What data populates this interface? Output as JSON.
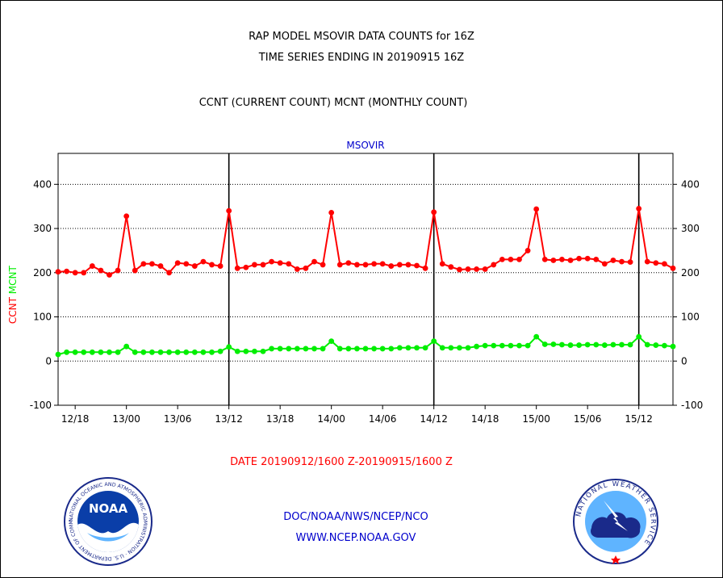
{
  "header": {
    "title_line1": "RAP MODEL MSOVIR DATA COUNTS for 16Z",
    "title_line2": "TIME SERIES ENDING IN 20190915 16Z",
    "subtitle": "CCNT (CURRENT COUNT) MCNT (MONTHLY COUNT)"
  },
  "footer": {
    "date_range": "DATE 20190912/1600 Z-20190915/1600 Z",
    "org": "DOC/NOAA/NWS/NCEP/NCO",
    "url": "WWW.NCEP.NOAA.GOV"
  },
  "logos": {
    "noaa_text": "NOAA",
    "noaa_ring": "NATIONAL OCEANIC AND ATMOSPHERIC ADMINISTRATION · U.S. DEPARTMENT OF COMMERCE",
    "nws_ring": "NATIONAL WEATHER SERVICE"
  },
  "colors": {
    "ccnt": "#ff0000",
    "mcnt": "#00ee00",
    "plot_label": "#0000cc",
    "footer_link": "#0000cc",
    "date_text": "#ff0000"
  },
  "chart_data": {
    "type": "line",
    "title": "MSOVIR",
    "ylabel_parts": [
      {
        "text": "CCNT",
        "color": "#ff0000"
      },
      {
        "text": "MCNT",
        "color": "#00ee00"
      }
    ],
    "xlabel": "DATE 20190912/1600 Z-20190915/1600 Z",
    "ylim": [
      -100,
      470
    ],
    "yticks": [
      -100,
      0,
      100,
      200,
      300,
      400
    ],
    "ytick_labels": [
      "-100",
      "0",
      "100",
      "200",
      "300",
      "400"
    ],
    "grid_y": [
      0,
      100,
      200,
      300,
      400
    ],
    "x_range": [
      0,
      72
    ],
    "xticks": [
      2,
      8,
      14,
      20,
      26,
      32,
      38,
      44,
      50,
      56,
      62,
      68
    ],
    "xtick_labels": [
      "12/18",
      "13/00",
      "13/06",
      "13/12",
      "13/18",
      "14/00",
      "14/06",
      "14/12",
      "14/18",
      "15/00",
      "15/06",
      "15/12"
    ],
    "day_lines_x": [
      20,
      44,
      68
    ],
    "series": [
      {
        "name": "CCNT",
        "color": "#ff0000",
        "x": [
          0,
          1,
          2,
          3,
          4,
          5,
          6,
          7,
          8,
          9,
          10,
          11,
          12,
          13,
          14,
          15,
          16,
          17,
          18,
          19,
          20,
          21,
          22,
          23,
          24,
          25,
          26,
          27,
          28,
          29,
          30,
          31,
          32,
          33,
          34,
          35,
          36,
          37,
          38,
          39,
          40,
          41,
          42,
          43,
          44,
          45,
          46,
          47,
          48,
          49,
          50,
          51,
          52,
          53,
          54,
          55,
          56,
          57,
          58,
          59,
          60,
          61,
          62,
          63,
          64,
          65,
          66,
          67,
          68,
          69,
          70,
          71,
          72
        ],
        "values": [
          202,
          203,
          200,
          200,
          215,
          205,
          195,
          205,
          328,
          205,
          220,
          220,
          215,
          200,
          222,
          220,
          215,
          225,
          218,
          215,
          340,
          210,
          212,
          218,
          218,
          225,
          222,
          220,
          208,
          210,
          225,
          218,
          336,
          218,
          222,
          218,
          218,
          220,
          220,
          215,
          218,
          218,
          216,
          210,
          337,
          220,
          213,
          207,
          208,
          208,
          208,
          218,
          230,
          230,
          230,
          250,
          344,
          230,
          228,
          230,
          228,
          232,
          232,
          230,
          220,
          228,
          225,
          224,
          345,
          225,
          222,
          220,
          210
        ]
      },
      {
        "name": "MCNT",
        "color": "#00ee00",
        "x": [
          0,
          1,
          2,
          3,
          4,
          5,
          6,
          7,
          8,
          9,
          10,
          11,
          12,
          13,
          14,
          15,
          16,
          17,
          18,
          19,
          20,
          21,
          22,
          23,
          24,
          25,
          26,
          27,
          28,
          29,
          30,
          31,
          32,
          33,
          34,
          35,
          36,
          37,
          38,
          39,
          40,
          41,
          42,
          43,
          44,
          45,
          46,
          47,
          48,
          49,
          50,
          51,
          52,
          53,
          54,
          55,
          56,
          57,
          58,
          59,
          60,
          61,
          62,
          63,
          64,
          65,
          66,
          67,
          68,
          69,
          70,
          71,
          72
        ],
        "values": [
          15,
          20,
          20,
          20,
          20,
          20,
          20,
          20,
          33,
          20,
          20,
          20,
          20,
          20,
          20,
          20,
          20,
          20,
          20,
          22,
          32,
          22,
          22,
          22,
          22,
          28,
          28,
          28,
          28,
          28,
          28,
          28,
          45,
          28,
          28,
          28,
          28,
          28,
          28,
          28,
          30,
          30,
          30,
          30,
          45,
          30,
          30,
          30,
          30,
          33,
          35,
          35,
          35,
          35,
          35,
          35,
          55,
          38,
          38,
          37,
          36,
          36,
          37,
          37,
          36,
          37,
          37,
          37,
          55,
          37,
          36,
          35,
          33
        ]
      }
    ]
  }
}
